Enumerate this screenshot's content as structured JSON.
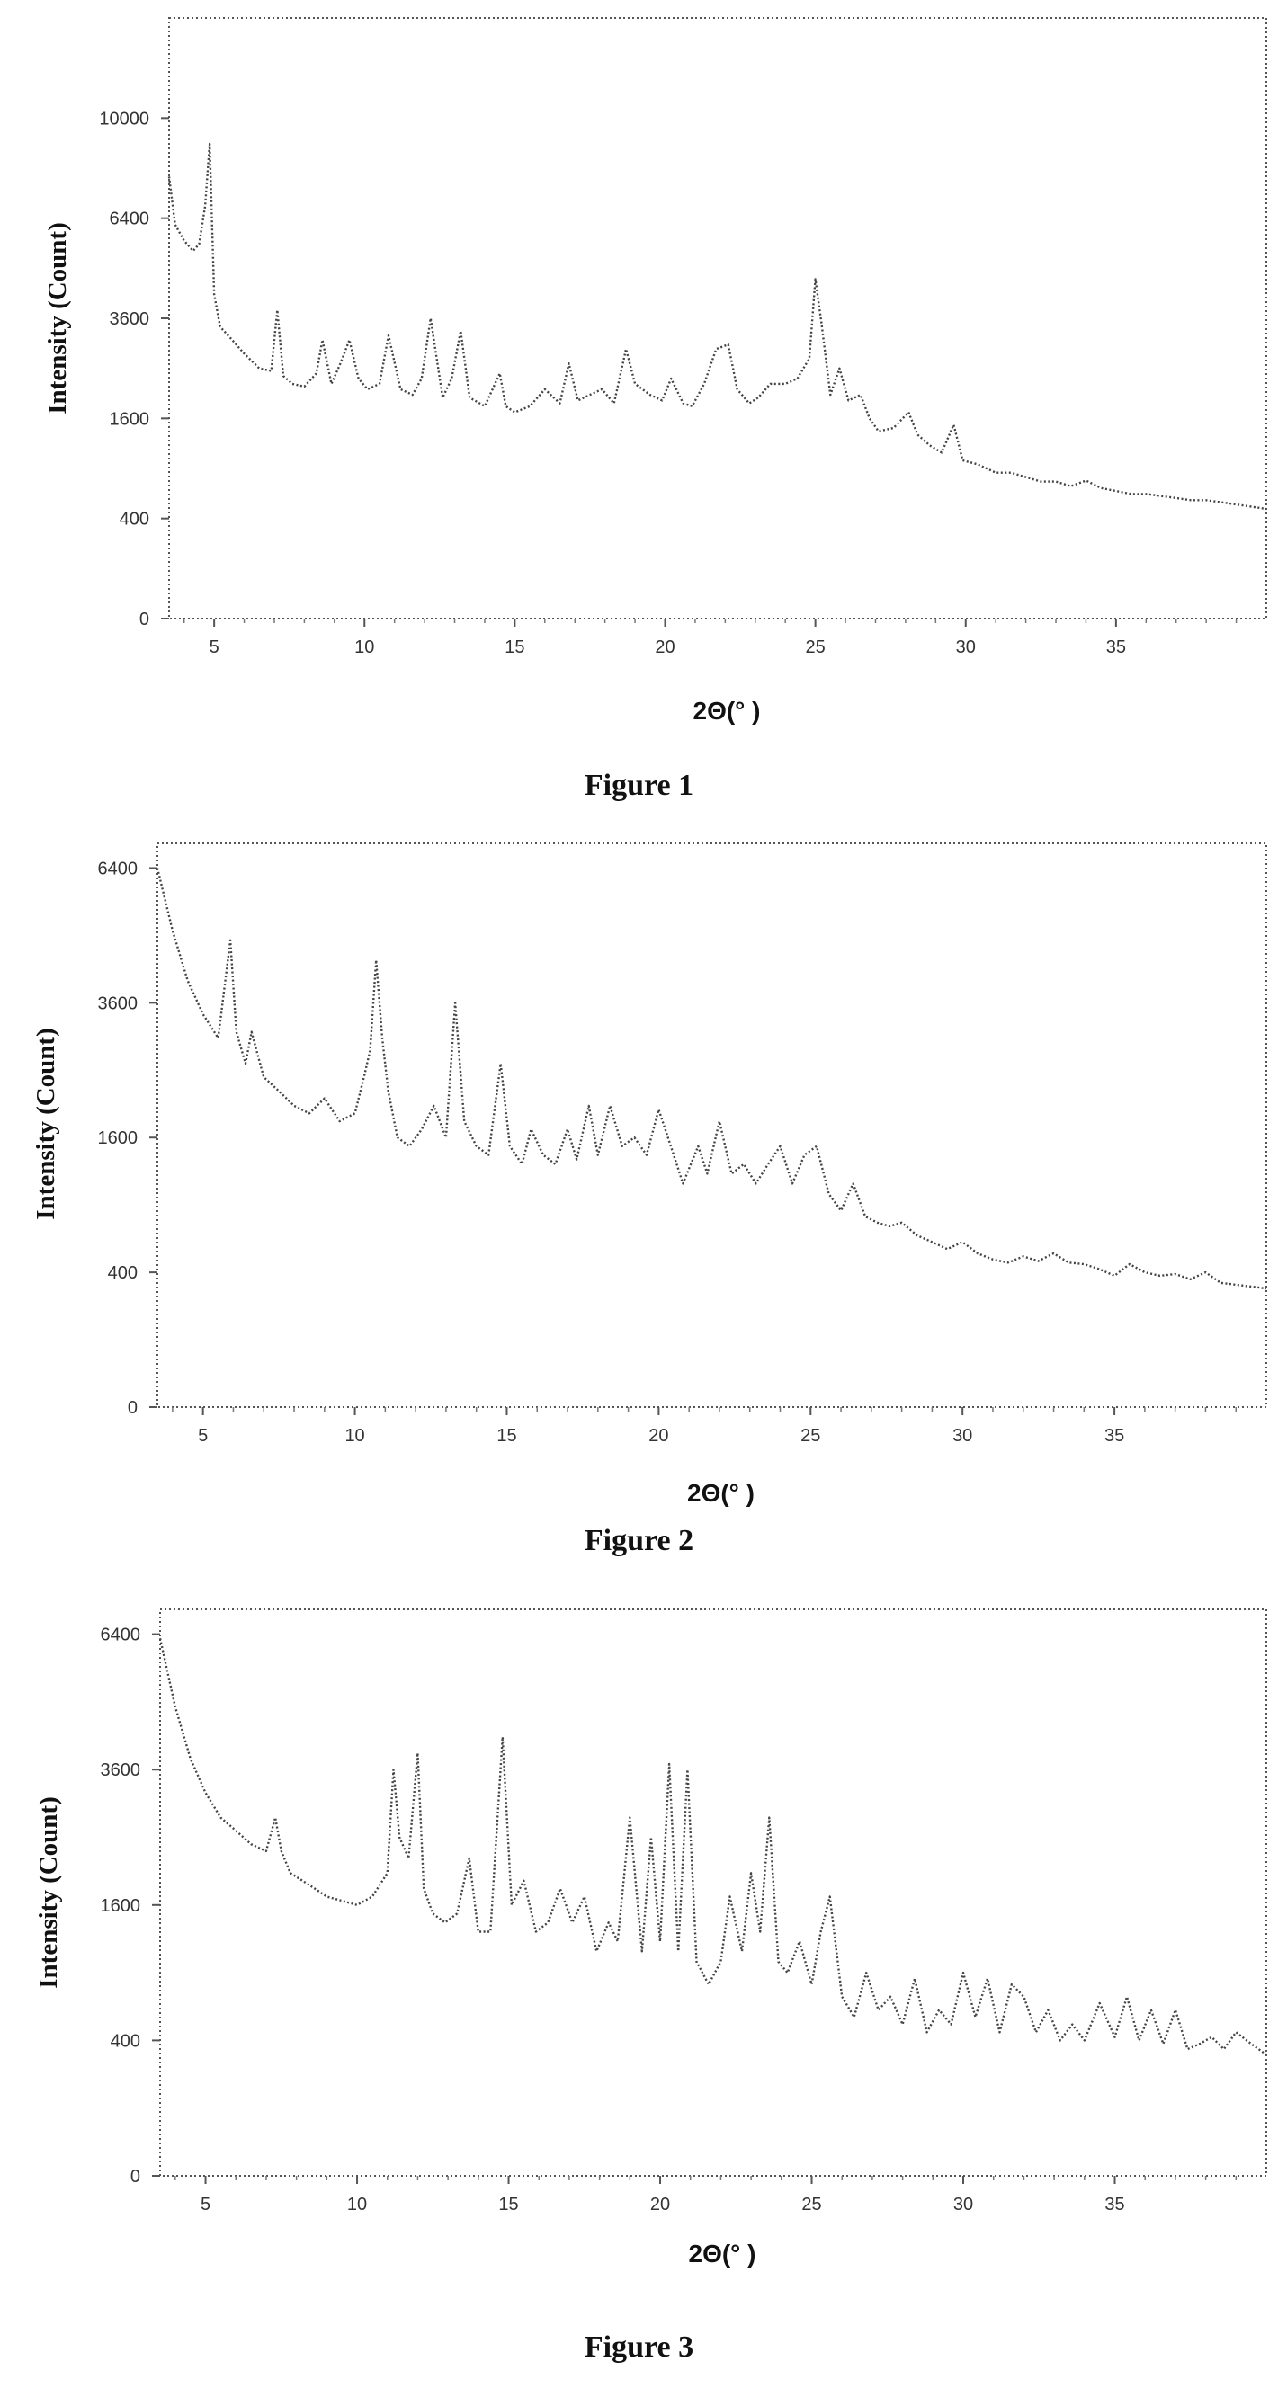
{
  "chart_data": [
    {
      "type": "line",
      "caption": "Figure 1",
      "xlabel": "2Θ(° )",
      "ylabel": "Intensity (Count)",
      "xlim": [
        3.5,
        40
      ],
      "xticks": [
        5,
        10,
        15,
        20,
        25,
        30,
        35
      ],
      "ytick_labels": [
        "0",
        "400",
        "1600",
        "3600",
        "6400",
        "10000"
      ],
      "yscale": "sqrt",
      "ylim": [
        0,
        14400
      ],
      "grid": false,
      "series": [
        {
          "line_style": "dotted",
          "x": [
            3.5,
            3.7,
            4.0,
            4.3,
            4.5,
            4.7,
            4.85,
            5.0,
            5.2,
            5.6,
            6.0,
            6.5,
            6.9,
            7.1,
            7.3,
            7.6,
            8.0,
            8.4,
            8.6,
            8.9,
            9.2,
            9.5,
            9.8,
            10.1,
            10.5,
            10.8,
            11.2,
            11.6,
            11.9,
            12.2,
            12.6,
            12.9,
            13.2,
            13.5,
            14.0,
            14.5,
            14.7,
            15.0,
            15.5,
            16.0,
            16.5,
            16.8,
            17.1,
            17.5,
            17.9,
            18.3,
            18.7,
            19.0,
            19.5,
            19.9,
            20.2,
            20.6,
            20.9,
            21.3,
            21.7,
            22.1,
            22.4,
            22.8,
            23.1,
            23.5,
            24.0,
            24.4,
            24.6,
            24.8,
            25.0,
            25.2,
            25.5,
            25.8,
            26.1,
            26.5,
            26.8,
            27.1,
            27.6,
            28.1,
            28.4,
            28.8,
            29.2,
            29.6,
            29.9,
            30.4,
            31.0,
            31.5,
            32.0,
            32.5,
            33.0,
            33.5,
            34.0,
            34.5,
            35.0,
            35.5,
            36.0,
            36.5,
            37.0,
            37.5,
            38.0,
            38.5,
            39.0,
            39.5,
            40.0
          ],
          "y": [
            7800,
            6200,
            5700,
            5400,
            5600,
            6800,
            9000,
            4200,
            3400,
            3100,
            2800,
            2500,
            2450,
            3800,
            2350,
            2200,
            2150,
            2400,
            3100,
            2200,
            2600,
            3100,
            2300,
            2100,
            2200,
            3200,
            2100,
            2000,
            2300,
            3600,
            1950,
            2300,
            3300,
            1950,
            1800,
            2400,
            1800,
            1700,
            1800,
            2100,
            1850,
            2600,
            1900,
            2000,
            2100,
            1850,
            2900,
            2200,
            2000,
            1900,
            2300,
            1850,
            1800,
            2200,
            2900,
            3000,
            2100,
            1850,
            1950,
            2200,
            2200,
            2300,
            2500,
            2700,
            4600,
            3500,
            2000,
            2500,
            1900,
            2000,
            1600,
            1400,
            1450,
            1700,
            1350,
            1200,
            1100,
            1500,
            1000,
            950,
            850,
            850,
            800,
            750,
            750,
            700,
            760,
            680,
            650,
            620,
            620,
            600,
            580,
            560,
            560,
            540,
            520,
            500,
            480
          ]
        }
      ]
    },
    {
      "type": "line",
      "caption": "Figure 2",
      "xlabel": "2Θ(° )",
      "ylabel": "Intensity (Count)",
      "xlim": [
        3.5,
        40
      ],
      "xticks": [
        5,
        10,
        15,
        20,
        25,
        30,
        35
      ],
      "ytick_labels": [
        "0",
        "400",
        "1600",
        "3600",
        "6400"
      ],
      "yscale": "sqrt",
      "ylim": [
        0,
        7000
      ],
      "grid": false,
      "series": [
        {
          "line_style": "dotted",
          "x": [
            3.5,
            4.0,
            4.5,
            5.0,
            5.5,
            5.9,
            6.1,
            6.4,
            6.6,
            7.0,
            7.5,
            8.0,
            8.5,
            9.0,
            9.5,
            10.0,
            10.3,
            10.5,
            10.7,
            10.9,
            11.1,
            11.4,
            11.8,
            12.2,
            12.6,
            13.0,
            13.3,
            13.6,
            14.0,
            14.4,
            14.8,
            15.1,
            15.5,
            15.8,
            16.2,
            16.6,
            17.0,
            17.3,
            17.7,
            18.0,
            18.4,
            18.8,
            19.2,
            19.6,
            20.0,
            20.4,
            20.8,
            21.3,
            21.6,
            22.0,
            22.4,
            22.8,
            23.2,
            23.6,
            24.0,
            24.4,
            24.8,
            25.2,
            25.6,
            26.0,
            26.4,
            26.8,
            27.2,
            27.6,
            28.0,
            28.5,
            29.0,
            29.5,
            30.0,
            30.5,
            31.0,
            31.5,
            32.0,
            32.5,
            33.0,
            33.5,
            34.0,
            34.5,
            35.0,
            35.5,
            36.0,
            36.5,
            37.0,
            37.5,
            38.0,
            38.5,
            39.0,
            39.5,
            40.0
          ],
          "y": [
            6400,
            5000,
            4000,
            3400,
            3000,
            4800,
            3100,
            2600,
            3100,
            2400,
            2200,
            2000,
            1900,
            2100,
            1800,
            1900,
            2400,
            2800,
            4400,
            3000,
            2200,
            1600,
            1500,
            1700,
            2000,
            1600,
            3600,
            1800,
            1500,
            1400,
            2600,
            1500,
            1300,
            1700,
            1400,
            1300,
            1700,
            1350,
            2000,
            1400,
            2000,
            1500,
            1600,
            1400,
            1950,
            1500,
            1100,
            1500,
            1200,
            1800,
            1200,
            1300,
            1100,
            1300,
            1500,
            1100,
            1400,
            1500,
            1000,
            850,
            1100,
            800,
            750,
            720,
            750,
            650,
            600,
            550,
            600,
            520,
            480,
            460,
            500,
            470,
            520,
            460,
            450,
            420,
            380,
            450,
            400,
            380,
            390,
            360,
            400,
            340,
            330,
            320,
            310
          ]
        }
      ]
    },
    {
      "type": "line",
      "caption": "Figure 3",
      "xlabel": "2Θ(° )",
      "ylabel": "Intensity (Count)",
      "xlim": [
        3.5,
        40
      ],
      "xticks": [
        5,
        10,
        15,
        20,
        25,
        30,
        35
      ],
      "ytick_labels": [
        "0",
        "400",
        "1600",
        "3600",
        "6400"
      ],
      "yscale": "sqrt",
      "ylim": [
        0,
        7000
      ],
      "grid": false,
      "series": [
        {
          "line_style": "dotted",
          "x": [
            3.5,
            4.0,
            4.5,
            5.0,
            5.5,
            6.0,
            6.5,
            7.0,
            7.3,
            7.5,
            7.8,
            8.2,
            8.6,
            9.0,
            9.5,
            10.0,
            10.5,
            11.0,
            11.2,
            11.4,
            11.7,
            12.0,
            12.2,
            12.5,
            12.9,
            13.3,
            13.7,
            14.0,
            14.4,
            14.8,
            15.1,
            15.5,
            15.9,
            16.3,
            16.7,
            17.1,
            17.5,
            17.9,
            18.3,
            18.6,
            19.0,
            19.4,
            19.7,
            20.0,
            20.3,
            20.6,
            20.9,
            21.2,
            21.6,
            22.0,
            22.3,
            22.7,
            23.0,
            23.3,
            23.6,
            23.9,
            24.2,
            24.6,
            25.0,
            25.3,
            25.6,
            26.0,
            26.4,
            26.8,
            27.2,
            27.6,
            28.0,
            28.4,
            28.8,
            29.2,
            29.6,
            30.0,
            30.4,
            30.8,
            31.2,
            31.6,
            32.0,
            32.4,
            32.8,
            33.2,
            33.6,
            34.0,
            34.5,
            35.0,
            35.4,
            35.8,
            36.2,
            36.6,
            37.0,
            37.4,
            37.8,
            38.2,
            38.6,
            39.0,
            39.5,
            40.0
          ],
          "y": [
            6300,
            4800,
            3800,
            3200,
            2800,
            2600,
            2400,
            2300,
            2800,
            2300,
            2000,
            1900,
            1800,
            1700,
            1650,
            1600,
            1700,
            2000,
            3600,
            2500,
            2200,
            3900,
            1800,
            1500,
            1400,
            1500,
            2200,
            1300,
            1300,
            4200,
            1600,
            1900,
            1300,
            1400,
            1800,
            1400,
            1700,
            1100,
            1400,
            1200,
            2800,
            1100,
            2500,
            1200,
            3700,
            1100,
            3600,
            1000,
            800,
            1000,
            1700,
            1100,
            2000,
            1300,
            2800,
            1000,
            900,
            1200,
            800,
            1300,
            1700,
            700,
            550,
            900,
            600,
            700,
            500,
            850,
            450,
            600,
            500,
            900,
            550,
            850,
            450,
            800,
            700,
            450,
            600,
            400,
            500,
            400,
            650,
            420,
            700,
            400,
            600,
            380,
            600,
            350,
            380,
            420,
            350,
            450,
            380,
            320
          ]
        }
      ]
    }
  ]
}
